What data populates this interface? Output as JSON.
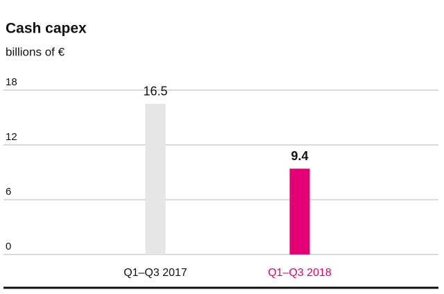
{
  "chart_data": {
    "type": "bar",
    "title": "Cash capex",
    "subtitle": "billions of €",
    "categories": [
      "Q1–Q3 2017",
      "Q1–Q3 2018"
    ],
    "values": [
      16.5,
      9.4
    ],
    "colors": [
      "#e6e6e6",
      "#e20074"
    ],
    "category_label_colors": [
      "#111111",
      "#e20074"
    ],
    "value_label_bold": [
      false,
      true
    ],
    "ylim": [
      0,
      18
    ],
    "yticks": [
      0,
      6,
      12,
      18
    ],
    "grid": true
  }
}
